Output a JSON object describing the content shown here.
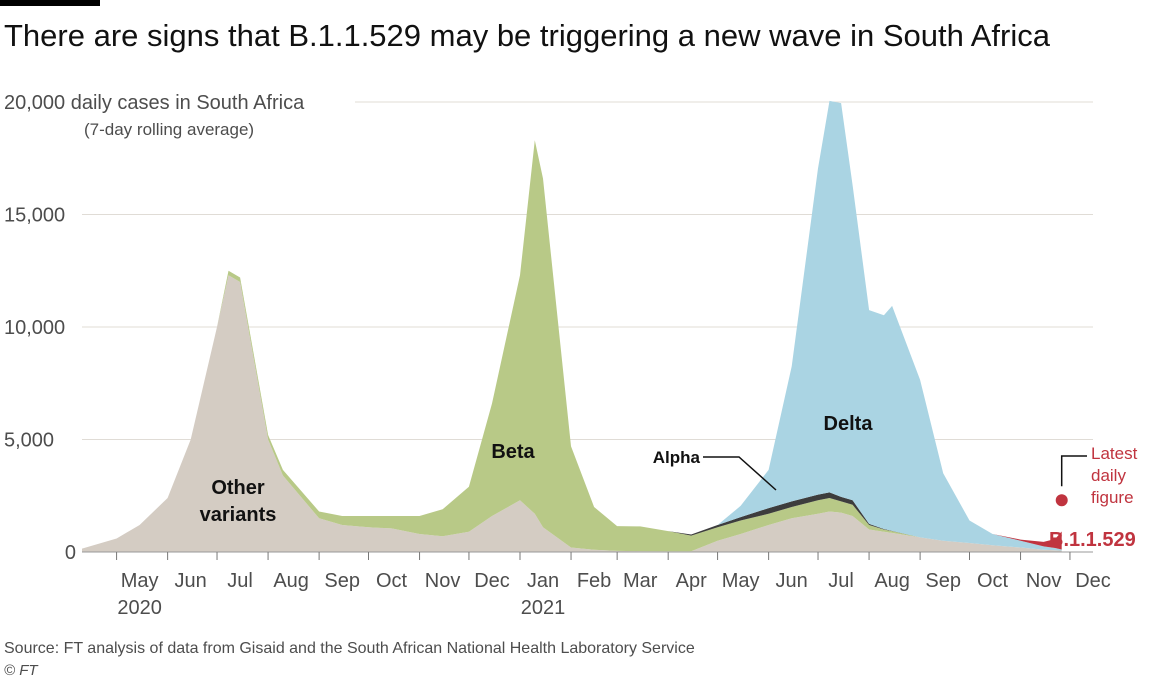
{
  "title": "There are signs that B.1.1.529 may be triggering a new wave in South Africa",
  "source": "Source: FT analysis of data from Gisaid and the South African National Health Laboratory Service",
  "copyright": "© FT",
  "colors": {
    "other": "#d4ccc3",
    "beta": "#b8c987",
    "alpha": "#3d3d3d",
    "delta": "#aad4e3",
    "b11529": "#c0343f",
    "grid": "#e0dcd6"
  },
  "chart_data": {
    "type": "area",
    "stacked": true,
    "title": "There are signs that B.1.1.529 may be triggering a new wave in South Africa",
    "ylabel": "daily cases in South Africa",
    "ylabel_sub": "(7-day rolling average)",
    "ylim": [
      0,
      20000
    ],
    "yticks": [
      "0",
      "5,000",
      "10,000",
      "15,000",
      "20,000"
    ],
    "ytick_values": [
      0,
      5000,
      10000,
      15000,
      20000
    ],
    "x_ticks": [
      {
        "label": "May",
        "year": "2020"
      },
      {
        "label": "Jun"
      },
      {
        "label": "Jul"
      },
      {
        "label": "Aug"
      },
      {
        "label": "Sep"
      },
      {
        "label": "Oct"
      },
      {
        "label": "Nov"
      },
      {
        "label": "Dec"
      },
      {
        "label": "Jan",
        "year": "2021"
      },
      {
        "label": "Feb"
      },
      {
        "label": "Mar"
      },
      {
        "label": "Apr"
      },
      {
        "label": "May"
      },
      {
        "label": "Jun"
      },
      {
        "label": "Jul"
      },
      {
        "label": "Aug"
      },
      {
        "label": "Sep"
      },
      {
        "label": "Oct"
      },
      {
        "label": "Nov"
      },
      {
        "label": "Dec"
      }
    ],
    "x": [
      "2020-04-10",
      "2020-05-01",
      "2020-05-15",
      "2020-06-01",
      "2020-06-15",
      "2020-07-01",
      "2020-07-08",
      "2020-07-15",
      "2020-08-01",
      "2020-08-10",
      "2020-09-01",
      "2020-09-15",
      "2020-10-01",
      "2020-10-15",
      "2020-11-01",
      "2020-11-15",
      "2020-12-01",
      "2020-12-15",
      "2021-01-01",
      "2021-01-10",
      "2021-01-15",
      "2021-02-01",
      "2021-02-15",
      "2021-03-01",
      "2021-03-15",
      "2021-04-01",
      "2021-04-15",
      "2021-05-01",
      "2021-05-15",
      "2021-06-01",
      "2021-06-15",
      "2021-07-01",
      "2021-07-08",
      "2021-07-15",
      "2021-07-22",
      "2021-08-01",
      "2021-08-10",
      "2021-08-15",
      "2021-09-01",
      "2021-09-15",
      "2021-10-01",
      "2021-10-15",
      "2021-11-01",
      "2021-11-15",
      "2021-11-22",
      "2021-11-26"
    ],
    "series": [
      {
        "name": "Other variants",
        "values": [
          150,
          600,
          1200,
          2400,
          5000,
          10000,
          12300,
          12000,
          5000,
          3400,
          1500,
          1200,
          1100,
          1050,
          800,
          700,
          900,
          1600,
          2300,
          1700,
          1100,
          200,
          100,
          50,
          40,
          30,
          30,
          500,
          800,
          1200,
          1500,
          1700,
          1800,
          1750,
          1600,
          1000,
          900,
          850,
          650,
          500,
          400,
          300,
          200,
          100,
          80,
          60
        ]
      },
      {
        "name": "Beta",
        "values": [
          0,
          0,
          0,
          0,
          0,
          0,
          200,
          200,
          200,
          250,
          300,
          400,
          500,
          550,
          800,
          1200,
          2000,
          5000,
          10000,
          16600,
          15500,
          4500,
          1900,
          1100,
          1100,
          900,
          700,
          600,
          600,
          500,
          500,
          600,
          600,
          500,
          500,
          200,
          100,
          80,
          0,
          0,
          0,
          0,
          0,
          0,
          0,
          0
        ]
      },
      {
        "name": "Alpha",
        "values": [
          0,
          0,
          0,
          0,
          0,
          0,
          0,
          0,
          0,
          0,
          0,
          0,
          0,
          0,
          0,
          0,
          0,
          0,
          0,
          0,
          0,
          0,
          0,
          0,
          0,
          0,
          50,
          100,
          150,
          250,
          250,
          250,
          250,
          200,
          200,
          50,
          20,
          10,
          0,
          0,
          0,
          0,
          0,
          0,
          0,
          0
        ]
      },
      {
        "name": "Delta",
        "values": [
          0,
          0,
          0,
          0,
          0,
          0,
          0,
          0,
          0,
          0,
          0,
          0,
          0,
          0,
          0,
          0,
          0,
          0,
          0,
          0,
          0,
          0,
          0,
          0,
          0,
          0,
          0,
          0,
          500,
          1700,
          6000,
          14500,
          17400,
          17500,
          14000,
          9500,
          9500,
          10000,
          7000,
          3000,
          1000,
          500,
          300,
          150,
          100,
          50
        ]
      },
      {
        "name": "B.1.1.529",
        "values": [
          0,
          0,
          0,
          0,
          0,
          0,
          0,
          0,
          0,
          0,
          0,
          0,
          0,
          0,
          0,
          0,
          0,
          0,
          0,
          0,
          0,
          0,
          0,
          0,
          0,
          0,
          0,
          0,
          0,
          0,
          0,
          0,
          0,
          0,
          0,
          0,
          0,
          0,
          0,
          0,
          0,
          0,
          50,
          200,
          400,
          800
        ]
      }
    ],
    "annotations": {
      "other_label": [
        "Other",
        "variants"
      ],
      "beta_label": "Beta",
      "alpha_label": "Alpha",
      "delta_label": "Delta",
      "b11529_label": "B.1.1.529",
      "latest_label": [
        "Latest",
        "daily",
        "figure"
      ],
      "latest_value": 2300
    }
  }
}
